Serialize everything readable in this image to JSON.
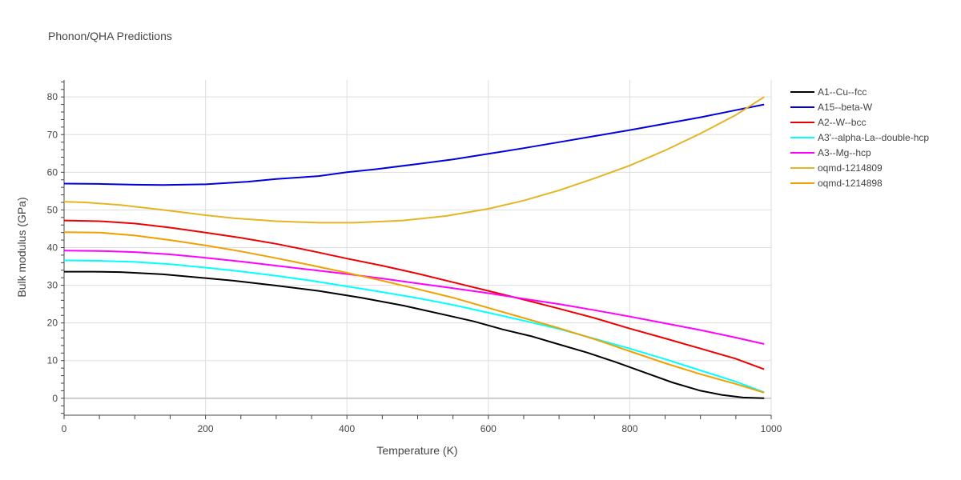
{
  "chart_data": {
    "type": "line",
    "title": "Phonon/QHA Predictions",
    "xlabel": "Temperature (K)",
    "ylabel": "Bulk modulus (GPa)",
    "xlim": [
      0,
      1000
    ],
    "ylim": [
      -4.5,
      84.5
    ],
    "xticks": [
      0,
      200,
      400,
      600,
      800,
      1000
    ],
    "yticks": [
      0,
      10,
      20,
      30,
      40,
      50,
      60,
      70,
      80
    ],
    "grid": true,
    "legend_position": "top-right",
    "series": [
      {
        "name": "A1--Cu--fcc",
        "color": "#000000",
        "points": [
          [
            0,
            33.6
          ],
          [
            40,
            33.6
          ],
          [
            80,
            33.5
          ],
          [
            140,
            32.9
          ],
          [
            200,
            31.9
          ],
          [
            240,
            31.2
          ],
          [
            300,
            29.9
          ],
          [
            360,
            28.5
          ],
          [
            420,
            26.7
          ],
          [
            480,
            24.6
          ],
          [
            540,
            22.1
          ],
          [
            580,
            20.4
          ],
          [
            620,
            18.3
          ],
          [
            660,
            16.5
          ],
          [
            700,
            14.3
          ],
          [
            740,
            12.1
          ],
          [
            780,
            9.6
          ],
          [
            820,
            6.9
          ],
          [
            860,
            4.2
          ],
          [
            900,
            2.0
          ],
          [
            930,
            0.9
          ],
          [
            960,
            0.2
          ],
          [
            990,
            0.0
          ]
        ]
      },
      {
        "name": "A15--beta-W",
        "color": "#0000dd",
        "points": [
          [
            0,
            57.0
          ],
          [
            50,
            56.9
          ],
          [
            100,
            56.7
          ],
          [
            140,
            56.6
          ],
          [
            200,
            56.8
          ],
          [
            260,
            57.5
          ],
          [
            300,
            58.2
          ],
          [
            360,
            59.0
          ],
          [
            400,
            60.0
          ],
          [
            440,
            60.8
          ],
          [
            500,
            62.2
          ],
          [
            550,
            63.4
          ],
          [
            600,
            64.9
          ],
          [
            650,
            66.4
          ],
          [
            700,
            68.0
          ],
          [
            750,
            69.6
          ],
          [
            800,
            71.2
          ],
          [
            850,
            72.9
          ],
          [
            900,
            74.6
          ],
          [
            950,
            76.5
          ],
          [
            990,
            78.0
          ]
        ]
      },
      {
        "name": "A2--W--bcc",
        "color": "#ee0000",
        "points": [
          [
            0,
            47.2
          ],
          [
            50,
            47.0
          ],
          [
            100,
            46.4
          ],
          [
            150,
            45.3
          ],
          [
            200,
            44.0
          ],
          [
            250,
            42.6
          ],
          [
            300,
            41.0
          ],
          [
            350,
            39.1
          ],
          [
            400,
            37.1
          ],
          [
            450,
            35.2
          ],
          [
            500,
            33.1
          ],
          [
            550,
            30.8
          ],
          [
            600,
            28.5
          ],
          [
            650,
            26.2
          ],
          [
            700,
            23.8
          ],
          [
            750,
            21.3
          ],
          [
            800,
            18.5
          ],
          [
            850,
            15.9
          ],
          [
            900,
            13.2
          ],
          [
            950,
            10.5
          ],
          [
            990,
            7.7
          ]
        ]
      },
      {
        "name": "A3'--alpha-La--double-hcp",
        "color": "#00ffff",
        "points": [
          [
            0,
            36.6
          ],
          [
            50,
            36.5
          ],
          [
            100,
            36.2
          ],
          [
            150,
            35.6
          ],
          [
            200,
            34.7
          ],
          [
            250,
            33.7
          ],
          [
            300,
            32.5
          ],
          [
            350,
            31.2
          ],
          [
            400,
            29.7
          ],
          [
            450,
            28.2
          ],
          [
            500,
            26.6
          ],
          [
            550,
            24.8
          ],
          [
            600,
            22.7
          ],
          [
            650,
            20.6
          ],
          [
            700,
            18.4
          ],
          [
            750,
            15.8
          ],
          [
            800,
            13.2
          ],
          [
            850,
            10.4
          ],
          [
            900,
            7.4
          ],
          [
            950,
            4.4
          ],
          [
            990,
            1.6
          ]
        ]
      },
      {
        "name": "A3--Mg--hcp",
        "color": "#ff00ff",
        "points": [
          [
            0,
            39.2
          ],
          [
            50,
            39.1
          ],
          [
            100,
            38.8
          ],
          [
            150,
            38.2
          ],
          [
            200,
            37.3
          ],
          [
            250,
            36.3
          ],
          [
            300,
            35.2
          ],
          [
            350,
            34.1
          ],
          [
            400,
            33.0
          ],
          [
            450,
            31.8
          ],
          [
            500,
            30.5
          ],
          [
            550,
            29.2
          ],
          [
            600,
            27.9
          ],
          [
            650,
            26.4
          ],
          [
            700,
            25.0
          ],
          [
            750,
            23.4
          ],
          [
            800,
            21.7
          ],
          [
            850,
            19.9
          ],
          [
            900,
            18.1
          ],
          [
            950,
            16.1
          ],
          [
            990,
            14.4
          ]
        ]
      },
      {
        "name": "oqmd-1214809",
        "color": "#e6b422",
        "points": [
          [
            0,
            52.2
          ],
          [
            30,
            52.0
          ],
          [
            80,
            51.3
          ],
          [
            140,
            50.0
          ],
          [
            200,
            48.6
          ],
          [
            240,
            47.8
          ],
          [
            300,
            47.0
          ],
          [
            360,
            46.6
          ],
          [
            410,
            46.6
          ],
          [
            480,
            47.2
          ],
          [
            540,
            48.4
          ],
          [
            600,
            50.3
          ],
          [
            650,
            52.5
          ],
          [
            700,
            55.2
          ],
          [
            750,
            58.4
          ],
          [
            800,
            61.8
          ],
          [
            850,
            65.8
          ],
          [
            900,
            70.3
          ],
          [
            950,
            75.2
          ],
          [
            990,
            80.0
          ]
        ]
      },
      {
        "name": "oqmd-1214898",
        "color": "#f0a000",
        "points": [
          [
            0,
            44.1
          ],
          [
            50,
            44.0
          ],
          [
            100,
            43.2
          ],
          [
            150,
            42.0
          ],
          [
            200,
            40.6
          ],
          [
            250,
            39.0
          ],
          [
            300,
            37.2
          ],
          [
            350,
            35.3
          ],
          [
            400,
            33.3
          ],
          [
            450,
            31.2
          ],
          [
            500,
            29.0
          ],
          [
            550,
            26.7
          ],
          [
            600,
            24.0
          ],
          [
            650,
            21.3
          ],
          [
            700,
            18.6
          ],
          [
            750,
            15.7
          ],
          [
            800,
            12.5
          ],
          [
            850,
            9.3
          ],
          [
            900,
            6.4
          ],
          [
            950,
            3.8
          ],
          [
            990,
            1.5
          ]
        ]
      }
    ]
  }
}
